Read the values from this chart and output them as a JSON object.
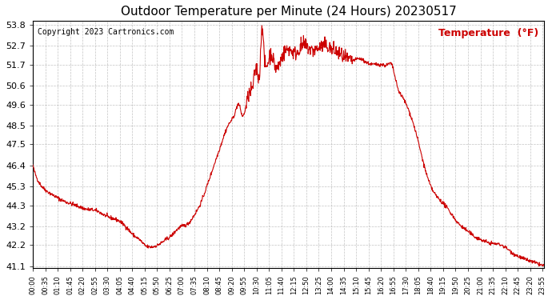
{
  "title": "Outdoor Temperature per Minute (24 Hours) 20230517",
  "copyright": "Copyright 2023 Cartronics.com",
  "legend_label": "Temperature  (°F)",
  "line_color": "#cc0000",
  "background_color": "#ffffff",
  "grid_color": "#aaaaaa",
  "title_color": "#000000",
  "copyright_color": "#000000",
  "legend_color": "#cc0000",
  "ylim": [
    41.0,
    54.0
  ],
  "yticks": [
    41.1,
    42.2,
    43.2,
    44.3,
    45.3,
    46.4,
    47.5,
    48.5,
    49.6,
    50.6,
    51.7,
    52.7,
    53.8
  ],
  "xtick_interval_minutes": 35,
  "total_minutes": 1440,
  "figsize": [
    6.9,
    3.75
  ],
  "dpi": 100,
  "keypoints": [
    [
      0,
      46.4
    ],
    [
      10,
      45.8
    ],
    [
      30,
      45.2
    ],
    [
      60,
      44.8
    ],
    [
      90,
      44.5
    ],
    [
      120,
      44.3
    ],
    [
      150,
      44.1
    ],
    [
      180,
      44.0
    ],
    [
      210,
      43.7
    ],
    [
      240,
      43.5
    ],
    [
      255,
      43.3
    ],
    [
      270,
      43.0
    ],
    [
      285,
      42.7
    ],
    [
      300,
      42.5
    ],
    [
      315,
      42.2
    ],
    [
      330,
      42.1
    ],
    [
      345,
      42.15
    ],
    [
      360,
      42.3
    ],
    [
      375,
      42.5
    ],
    [
      390,
      42.7
    ],
    [
      405,
      43.0
    ],
    [
      420,
      43.2
    ],
    [
      435,
      43.3
    ],
    [
      455,
      43.8
    ],
    [
      470,
      44.3
    ],
    [
      490,
      45.3
    ],
    [
      510,
      46.4
    ],
    [
      530,
      47.5
    ],
    [
      550,
      48.5
    ],
    [
      570,
      49.2
    ],
    [
      580,
      49.6
    ],
    [
      590,
      49.0
    ],
    [
      600,
      49.5
    ],
    [
      610,
      50.2
    ],
    [
      620,
      50.6
    ],
    [
      630,
      51.5
    ],
    [
      640,
      51.7
    ],
    [
      645,
      53.8
    ],
    [
      650,
      52.5
    ],
    [
      660,
      51.7
    ],
    [
      665,
      52.0
    ],
    [
      670,
      52.3
    ],
    [
      680,
      51.7
    ],
    [
      700,
      52.0
    ],
    [
      720,
      52.5
    ],
    [
      740,
      52.3
    ],
    [
      760,
      52.7
    ],
    [
      780,
      52.5
    ],
    [
      800,
      52.5
    ],
    [
      820,
      52.7
    ],
    [
      840,
      52.5
    ],
    [
      860,
      52.3
    ],
    [
      880,
      52.0
    ],
    [
      900,
      51.9
    ],
    [
      920,
      52.0
    ],
    [
      940,
      51.8
    ],
    [
      960,
      51.7
    ],
    [
      980,
      51.7
    ],
    [
      1000,
      51.7
    ],
    [
      1010,
      51.7
    ],
    [
      1025,
      50.6
    ],
    [
      1040,
      50.0
    ],
    [
      1060,
      49.2
    ],
    [
      1080,
      48.0
    ],
    [
      1100,
      46.5
    ],
    [
      1120,
      45.3
    ],
    [
      1140,
      44.7
    ],
    [
      1160,
      44.3
    ],
    [
      1180,
      43.8
    ],
    [
      1200,
      43.3
    ],
    [
      1220,
      43.0
    ],
    [
      1240,
      42.7
    ],
    [
      1260,
      42.5
    ],
    [
      1290,
      42.3
    ],
    [
      1320,
      42.2
    ],
    [
      1350,
      41.8
    ],
    [
      1380,
      41.5
    ],
    [
      1410,
      41.3
    ],
    [
      1439,
      41.1
    ]
  ]
}
